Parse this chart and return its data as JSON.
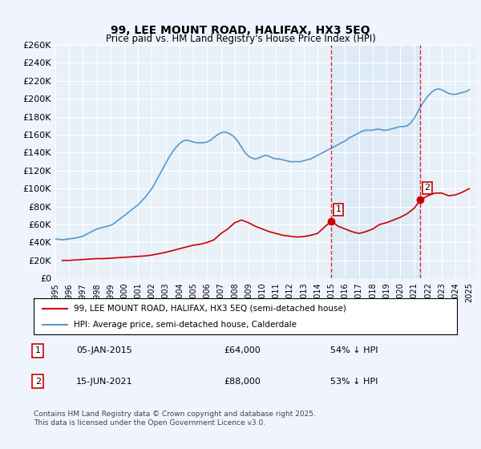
{
  "title": "99, LEE MOUNT ROAD, HALIFAX, HX3 5EQ",
  "subtitle": "Price paid vs. HM Land Registry's House Price Index (HPI)",
  "ylabel_ticks": [
    "£0",
    "£20K",
    "£40K",
    "£60K",
    "£80K",
    "£100K",
    "£120K",
    "£140K",
    "£160K",
    "£180K",
    "£200K",
    "£220K",
    "£240K",
    "£260K"
  ],
  "ylim": [
    0,
    260000
  ],
  "ytick_vals": [
    0,
    20000,
    40000,
    60000,
    80000,
    100000,
    120000,
    140000,
    160000,
    180000,
    200000,
    220000,
    240000,
    260000
  ],
  "xlim_start": 1995.0,
  "xlim_end": 2025.5,
  "background_color": "#f0f4ff",
  "plot_bg_color": "#f0f4ff",
  "grid_color": "#ffffff",
  "red_line_color": "#cc0000",
  "blue_line_color": "#5599cc",
  "marker_color": "#cc0000",
  "vline_color": "#cc0000",
  "highlight_bg": "#ddeeff",
  "legend_label_red": "99, LEE MOUNT ROAD, HALIFAX, HX3 5EQ (semi-detached house)",
  "legend_label_blue": "HPI: Average price, semi-detached house, Calderdale",
  "sale1_label": "1",
  "sale1_date": "05-JAN-2015",
  "sale1_price": "£64,000",
  "sale1_hpi": "54% ↓ HPI",
  "sale1_year": 2015.01,
  "sale1_value": 64000,
  "sale2_label": "2",
  "sale2_date": "15-JUN-2021",
  "sale2_price": "£88,000",
  "sale2_hpi": "53% ↓ HPI",
  "sale2_year": 2021.46,
  "sale2_value": 88000,
  "footnote": "Contains HM Land Registry data © Crown copyright and database right 2025.\nThis data is licensed under the Open Government Licence v3.0.",
  "hpi_data_x": [
    1995.0,
    1995.25,
    1995.5,
    1995.75,
    1996.0,
    1996.25,
    1996.5,
    1996.75,
    1997.0,
    1997.25,
    1997.5,
    1997.75,
    1998.0,
    1998.25,
    1998.5,
    1998.75,
    1999.0,
    1999.25,
    1999.5,
    1999.75,
    2000.0,
    2000.25,
    2000.5,
    2000.75,
    2001.0,
    2001.25,
    2001.5,
    2001.75,
    2002.0,
    2002.25,
    2002.5,
    2002.75,
    2003.0,
    2003.25,
    2003.5,
    2003.75,
    2004.0,
    2004.25,
    2004.5,
    2004.75,
    2005.0,
    2005.25,
    2005.5,
    2005.75,
    2006.0,
    2006.25,
    2006.5,
    2006.75,
    2007.0,
    2007.25,
    2007.5,
    2007.75,
    2008.0,
    2008.25,
    2008.5,
    2008.75,
    2009.0,
    2009.25,
    2009.5,
    2009.75,
    2010.0,
    2010.25,
    2010.5,
    2010.75,
    2011.0,
    2011.25,
    2011.5,
    2011.75,
    2012.0,
    2012.25,
    2012.5,
    2012.75,
    2013.0,
    2013.25,
    2013.5,
    2013.75,
    2014.0,
    2014.25,
    2014.5,
    2014.75,
    2015.0,
    2015.25,
    2015.5,
    2015.75,
    2016.0,
    2016.25,
    2016.5,
    2016.75,
    2017.0,
    2017.25,
    2017.5,
    2017.75,
    2018.0,
    2018.25,
    2018.5,
    2018.75,
    2019.0,
    2019.25,
    2019.5,
    2019.75,
    2020.0,
    2020.25,
    2020.5,
    2020.75,
    2021.0,
    2021.25,
    2021.5,
    2021.75,
    2022.0,
    2022.25,
    2022.5,
    2022.75,
    2023.0,
    2023.25,
    2023.5,
    2023.75,
    2024.0,
    2024.25,
    2024.5,
    2024.75,
    2025.0
  ],
  "hpi_data_y": [
    44000,
    43500,
    43000,
    43500,
    44000,
    44500,
    45000,
    46000,
    47000,
    49000,
    51000,
    53000,
    55000,
    56000,
    57000,
    58000,
    59000,
    61000,
    64000,
    67000,
    70000,
    73000,
    76000,
    79000,
    82000,
    86000,
    90000,
    95000,
    100000,
    107000,
    114000,
    121000,
    128000,
    135000,
    141000,
    146000,
    150000,
    153000,
    154000,
    153000,
    152000,
    151000,
    151000,
    151000,
    152000,
    154000,
    157000,
    160000,
    162000,
    163000,
    162000,
    160000,
    157000,
    152000,
    146000,
    140000,
    136000,
    134000,
    133000,
    134000,
    136000,
    137000,
    136000,
    134000,
    133000,
    133000,
    132000,
    131000,
    130000,
    130000,
    130000,
    130000,
    131000,
    132000,
    133000,
    135000,
    137000,
    139000,
    141000,
    143000,
    145000,
    147000,
    149000,
    151000,
    153000,
    156000,
    158000,
    160000,
    162000,
    164000,
    165000,
    165000,
    165000,
    166000,
    166000,
    165000,
    165000,
    166000,
    167000,
    168000,
    169000,
    169000,
    170000,
    173000,
    178000,
    185000,
    192000,
    198000,
    203000,
    207000,
    210000,
    211000,
    210000,
    208000,
    206000,
    205000,
    205000,
    206000,
    207000,
    208000,
    210000
  ],
  "property_data_x": [
    1995.5,
    1996.0,
    1996.5,
    1997.0,
    1997.5,
    1998.0,
    1998.5,
    1999.0,
    1999.5,
    2000.0,
    2000.5,
    2001.0,
    2001.5,
    2002.0,
    2002.5,
    2003.0,
    2003.5,
    2004.0,
    2004.5,
    2005.0,
    2005.5,
    2006.0,
    2006.5,
    2007.0,
    2007.5,
    2008.0,
    2008.5,
    2009.0,
    2009.5,
    2010.0,
    2010.5,
    2011.0,
    2011.5,
    2012.0,
    2012.5,
    2013.0,
    2013.5,
    2014.0,
    2014.5,
    2015.0,
    2015.5,
    2016.0,
    2016.5,
    2017.0,
    2017.5,
    2018.0,
    2018.5,
    2019.0,
    2019.5,
    2020.0,
    2020.5,
    2021.0,
    2021.5,
    2022.0,
    2022.5,
    2023.0,
    2023.5,
    2024.0,
    2024.5,
    2025.0
  ],
  "property_data_y": [
    20000,
    20000,
    20500,
    21000,
    21500,
    22000,
    22000,
    22500,
    23000,
    23500,
    24000,
    24500,
    25000,
    26000,
    27500,
    29000,
    31000,
    33000,
    35000,
    37000,
    38000,
    40000,
    43000,
    50000,
    55000,
    62000,
    65000,
    62000,
    58000,
    55000,
    52000,
    50000,
    48000,
    47000,
    46000,
    46500,
    48000,
    50000,
    57000,
    64000,
    58000,
    55000,
    52000,
    50000,
    52000,
    55000,
    60000,
    62000,
    65000,
    68000,
    72000,
    78000,
    88000,
    92000,
    95000,
    95000,
    92000,
    93000,
    96000,
    100000
  ]
}
